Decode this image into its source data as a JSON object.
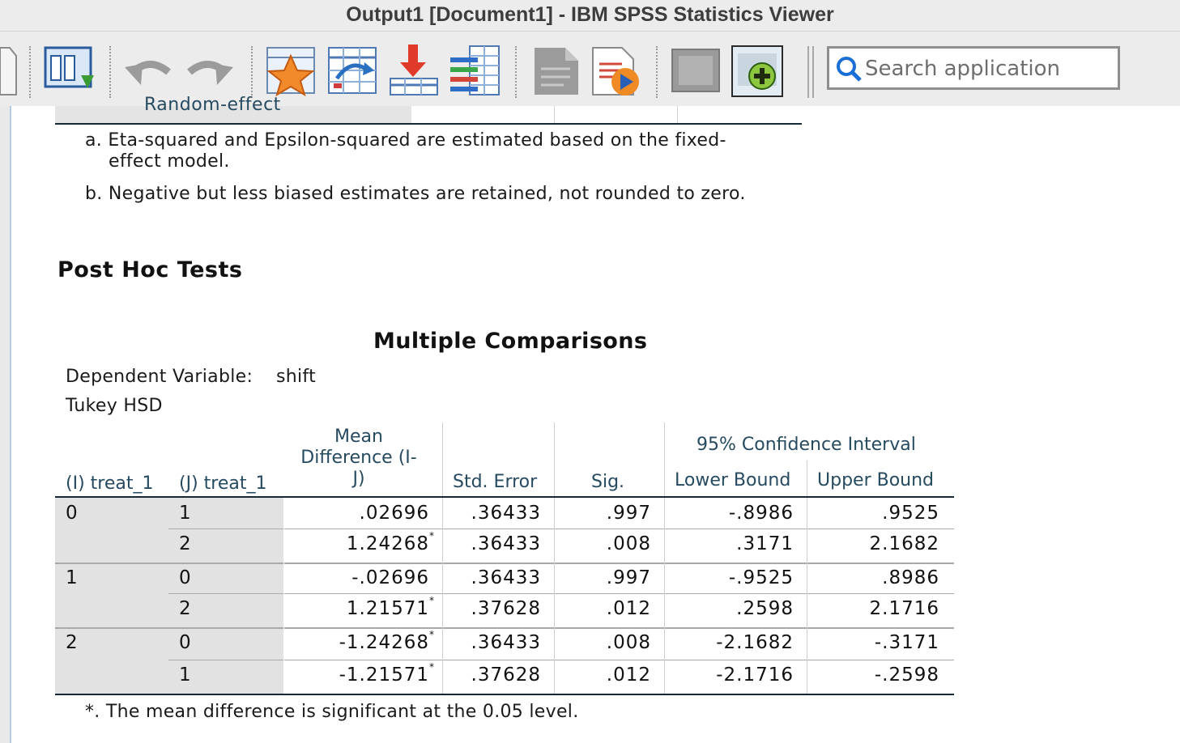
{
  "window": {
    "title": "Output1 [Document1] - IBM SPSS Statistics Viewer"
  },
  "toolbar": {
    "icons": [
      "open-document-icon",
      "designate-window-icon",
      "undo-icon",
      "redo-icon",
      "favorites-star-icon",
      "go-to-data-icon",
      "insert-variable-icon",
      "variables-list-icon",
      "output-document-icon",
      "run-script-icon",
      "image-icon",
      "add-icon"
    ],
    "search_placeholder": "Search application"
  },
  "prev_table": {
    "cut_row_label": "Random-effect",
    "footnote_a": "a. Eta-squared and Epsilon-squared are estimated based on the fixed-",
    "footnote_a_cont": "effect model.",
    "footnote_b": "b. Negative but less biased estimates are retained, not rounded to zero."
  },
  "section_heading": "Post Hoc Tests",
  "table": {
    "title": "Multiple Comparisons",
    "dependent_label": "Dependent Variable:",
    "dependent_value": "shift",
    "method": "Tukey HSD",
    "headers": {
      "i": "(I) treat_1",
      "j": "(J) treat_1",
      "mean_diff_1": "Mean",
      "mean_diff_2": "Difference (I-",
      "mean_diff_3": "J)",
      "std_error": "Std. Error",
      "sig": "Sig.",
      "ci": "95% Confidence Interval",
      "lower": "Lower Bound",
      "upper": "Upper Bound"
    },
    "groups": [
      {
        "i": "0",
        "rows": [
          {
            "j": "1",
            "md": ".02696",
            "star": "",
            "se": ".36433",
            "sig": ".997",
            "lb": "-.8986",
            "ub": ".9525"
          },
          {
            "j": "2",
            "md": "1.24268",
            "star": "*",
            "se": ".36433",
            "sig": ".008",
            "lb": ".3171",
            "ub": "2.1682"
          }
        ]
      },
      {
        "i": "1",
        "rows": [
          {
            "j": "0",
            "md": "-.02696",
            "star": "",
            "se": ".36433",
            "sig": ".997",
            "lb": "-.9525",
            "ub": ".8986"
          },
          {
            "j": "2",
            "md": "1.21571",
            "star": "*",
            "se": ".37628",
            "sig": ".012",
            "lb": ".2598",
            "ub": "2.1716"
          }
        ]
      },
      {
        "i": "2",
        "rows": [
          {
            "j": "0",
            "md": "-1.24268",
            "star": "*",
            "se": ".36433",
            "sig": ".008",
            "lb": "-2.1682",
            "ub": "-.3171"
          },
          {
            "j": "1",
            "md": "-1.21571",
            "star": "*",
            "se": ".37628",
            "sig": ".012",
            "lb": "-2.1716",
            "ub": "-.2598"
          }
        ]
      }
    ],
    "footnote": "*. The mean difference is significant at the 0.05 level."
  }
}
